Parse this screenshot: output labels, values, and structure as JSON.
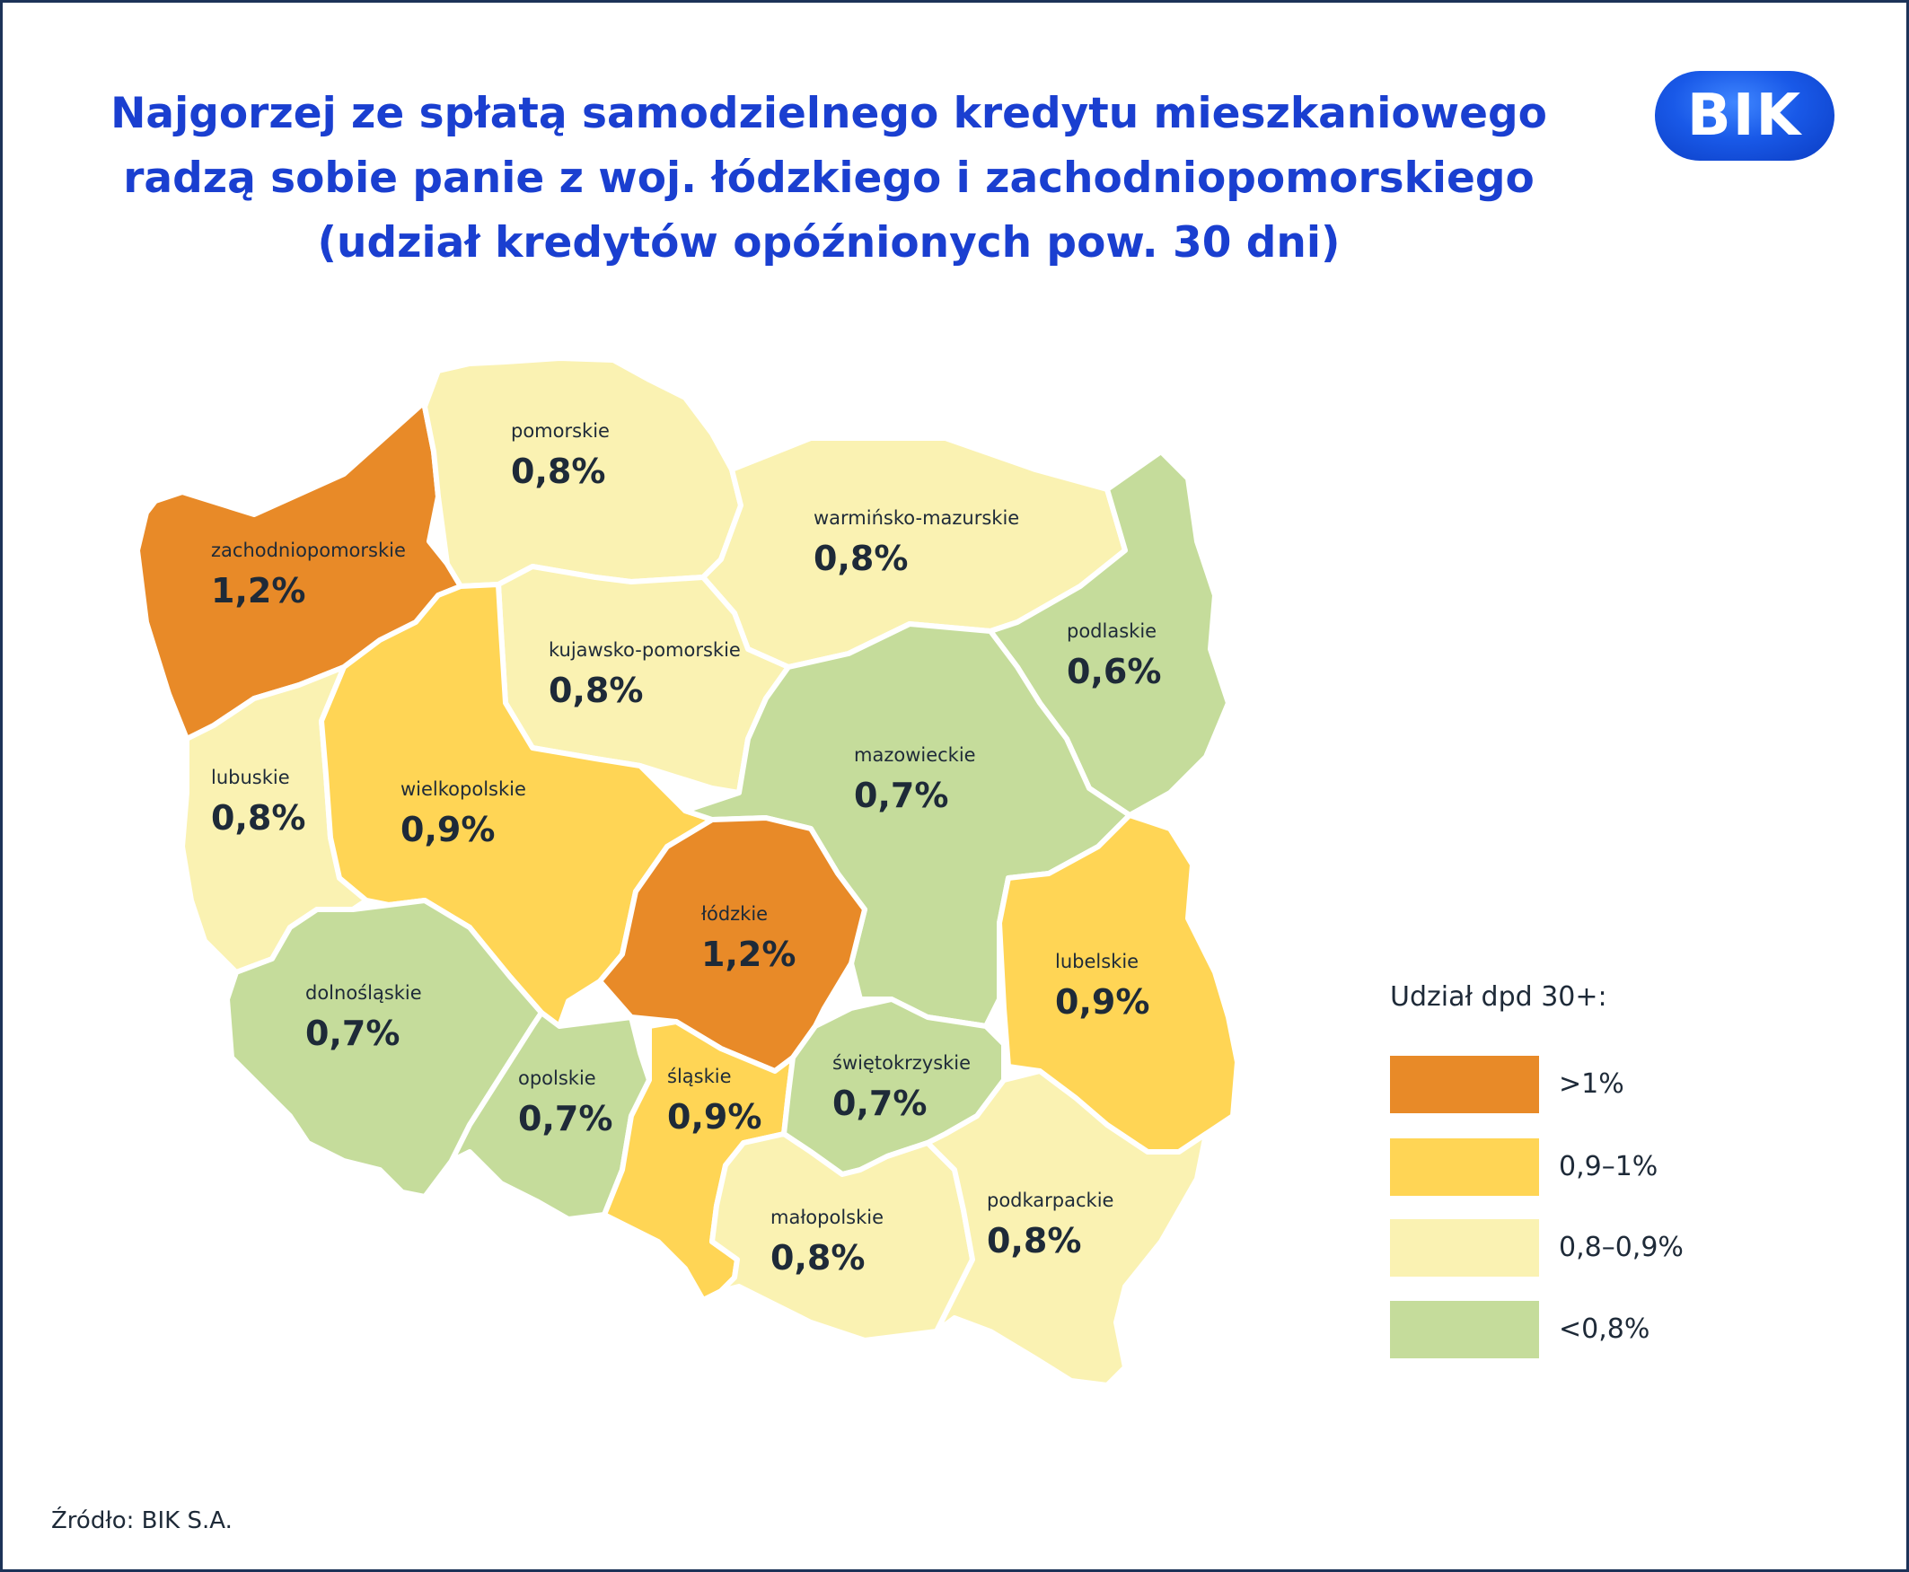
{
  "title_lines": [
    "Najgorzej ze spłatą samodzielnego kredytu mieszkaniowego",
    "radzą sobie panie z woj. łódzkiego i zachodniopomorskiego",
    "(udział kredytów opóźnionych pow. 30 dni)"
  ],
  "logo_text": "BIK",
  "colors": {
    "over_1": "#e88a28",
    "0.9_1": "#ffd555",
    "0.8_0.9": "#faf2b2",
    "under_0.8": "#c5dc9b",
    "title": "#1a3fd0",
    "text": "#1e2a38"
  },
  "regions": [
    {
      "name": "zachodniopomorskie",
      "value": "1,2%",
      "category": "over_1"
    },
    {
      "name": "pomorskie",
      "value": "0,8%",
      "category": "0.8_0.9"
    },
    {
      "name": "warmińsko-mazurskie",
      "value": "0,8%",
      "category": "0.8_0.9"
    },
    {
      "name": "podlaskie",
      "value": "0,6%",
      "category": "under_0.8"
    },
    {
      "name": "kujawsko-pomorskie",
      "value": "0,8%",
      "category": "0.8_0.9"
    },
    {
      "name": "lubuskie",
      "value": "0,8%",
      "category": "0.8_0.9"
    },
    {
      "name": "wielkopolskie",
      "value": "0,9%",
      "category": "0.9_1"
    },
    {
      "name": "mazowieckie",
      "value": "0,7%",
      "category": "under_0.8"
    },
    {
      "name": "łódzkie",
      "value": "1,2%",
      "category": "over_1"
    },
    {
      "name": "lubelskie",
      "value": "0,9%",
      "category": "0.9_1"
    },
    {
      "name": "dolnośląskie",
      "value": "0,7%",
      "category": "under_0.8"
    },
    {
      "name": "opolskie",
      "value": "0,7%",
      "category": "under_0.8"
    },
    {
      "name": "śląskie",
      "value": "0,9%",
      "category": "0.9_1"
    },
    {
      "name": "świętokrzyskie",
      "value": "0,7%",
      "category": "under_0.8"
    },
    {
      "name": "małopolskie",
      "value": "0,8%",
      "category": "0.8_0.9"
    },
    {
      "name": "podkarpackie",
      "value": "0,8%",
      "category": "0.8_0.9"
    }
  ],
  "legend": {
    "title": "Udział dpd 30+:",
    "items": [
      {
        "label": ">1%",
        "category": "over_1"
      },
      {
        "label": "0,9–1%",
        "category": "0.9_1"
      },
      {
        "label": "0,8–0,9%",
        "category": "0.8_0.9"
      },
      {
        "label": "<0,8%",
        "category": "under_0.8"
      }
    ]
  },
  "source": "Źródło: BIK S.A."
}
